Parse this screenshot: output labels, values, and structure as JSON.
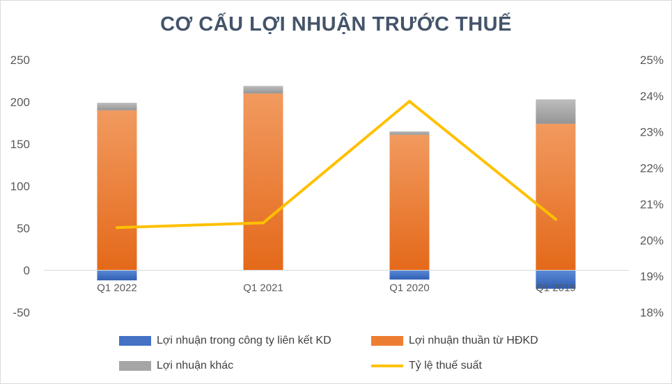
{
  "chart_data": {
    "type": "bar",
    "title": "CƠ CẤU LỢI NHUẬN TRƯỚC THUẾ",
    "categories": [
      "Q1 2022",
      "Q1 2021",
      "Q1 2020",
      "Q1 2019"
    ],
    "series": [
      {
        "name": "Lợi nhuận trong công ty liên kết KD",
        "kind": "stacked-bar",
        "axis": "left",
        "color": "#4472c4",
        "values": [
          -12,
          0,
          -11,
          -22
        ]
      },
      {
        "name": "Lợi nhuận thuần từ HĐKD",
        "kind": "stacked-bar",
        "axis": "left",
        "color": "#ed7d31",
        "values": [
          190,
          210,
          161,
          174
        ]
      },
      {
        "name": "Lợi nhuận khác",
        "kind": "stacked-bar",
        "axis": "left",
        "color": "#a5a5a5",
        "values": [
          9,
          9,
          4,
          29
        ]
      },
      {
        "name": "Tỷ lệ thuế suất",
        "kind": "line",
        "axis": "right",
        "color": "#ffc000",
        "values": [
          0.2035,
          0.2048,
          0.2385,
          0.2058
        ]
      }
    ],
    "ylim": [
      -50,
      250
    ],
    "yticks": [
      "250",
      "200",
      "150",
      "100",
      "50",
      "0",
      "-50"
    ],
    "y2lim": [
      0.18,
      0.25
    ],
    "y2ticks": [
      "25%",
      "24%",
      "23%",
      "22%",
      "21%",
      "20%",
      "19%",
      "18%"
    ],
    "xlabel": "",
    "ylabel": "",
    "grid": false,
    "legend_position": "bottom"
  }
}
